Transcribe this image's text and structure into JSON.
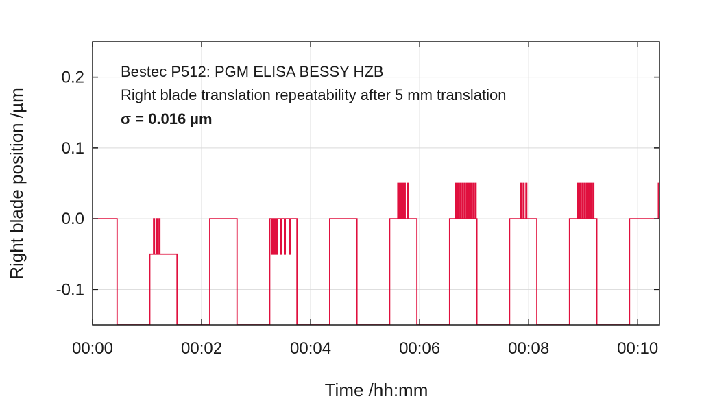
{
  "chart_data": {
    "type": "line",
    "annotations": [
      "Bestec P512: PGM ELISA BESSY HZB",
      "Right blade translation repeatability after 5 mm translation",
      "σ = 0.016 µm"
    ],
    "xlabel": "Time /hh:mm",
    "ylabel": "Right blade position /µm",
    "x_ticks": [
      "00:00",
      "00:02",
      "00:04",
      "00:06",
      "00:08",
      "00:10"
    ],
    "x_tick_minutes": [
      0,
      2,
      4,
      6,
      8,
      10
    ],
    "xlim_minutes": [
      0,
      10.4
    ],
    "y_ticks": [
      0.2,
      0.1,
      0.0,
      -0.1
    ],
    "y_tick_labels": [
      "0.2",
      "0.1",
      "0.0",
      "-0.1"
    ],
    "ylim": [
      -0.15,
      0.25
    ],
    "grid": true,
    "color": "#e0103e",
    "series": [
      {
        "plateaus": [
          {
            "start": 0.0,
            "end": 0.45,
            "base": 0.0,
            "spikes": []
          },
          {
            "start": 1.05,
            "end": 1.55,
            "base": -0.05,
            "spikes": [
              {
                "t": 1.12,
                "v": 0.0
              },
              {
                "t": 1.17,
                "v": 0.0
              },
              {
                "t": 1.22,
                "v": 0.0
              }
            ]
          },
          {
            "start": 2.15,
            "end": 2.65,
            "base": 0.0,
            "spikes": []
          },
          {
            "start": 3.25,
            "end": 3.75,
            "base": 0.0,
            "spikes": [
              {
                "t": 3.28,
                "v": -0.05
              },
              {
                "t": 3.31,
                "v": -0.05
              },
              {
                "t": 3.34,
                "v": -0.05
              },
              {
                "t": 3.37,
                "v": -0.05
              },
              {
                "t": 3.45,
                "v": -0.05
              },
              {
                "t": 3.52,
                "v": -0.05
              },
              {
                "t": 3.62,
                "v": -0.05
              }
            ]
          },
          {
            "start": 4.35,
            "end": 4.85,
            "base": 0.0,
            "spikes": []
          },
          {
            "start": 5.45,
            "end": 5.95,
            "base": 0.0,
            "spikes": [
              {
                "t": 5.6,
                "v": 0.05
              },
              {
                "t": 5.63,
                "v": 0.05
              },
              {
                "t": 5.66,
                "v": 0.05
              },
              {
                "t": 5.69,
                "v": 0.05
              },
              {
                "t": 5.72,
                "v": 0.05
              },
              {
                "t": 5.78,
                "v": 0.05
              }
            ]
          },
          {
            "start": 6.55,
            "end": 7.05,
            "base": 0.0,
            "spikes": [
              {
                "t": 6.66,
                "v": 0.05
              },
              {
                "t": 6.7,
                "v": 0.05
              },
              {
                "t": 6.74,
                "v": 0.05
              },
              {
                "t": 6.78,
                "v": 0.05
              },
              {
                "t": 6.82,
                "v": 0.05
              },
              {
                "t": 6.86,
                "v": 0.05
              },
              {
                "t": 6.9,
                "v": 0.05
              },
              {
                "t": 6.94,
                "v": 0.05
              },
              {
                "t": 6.98,
                "v": 0.05
              },
              {
                "t": 7.02,
                "v": 0.05
              }
            ]
          },
          {
            "start": 7.65,
            "end": 8.15,
            "base": 0.0,
            "spikes": [
              {
                "t": 7.85,
                "v": 0.05
              },
              {
                "t": 7.9,
                "v": 0.05
              },
              {
                "t": 7.95,
                "v": 0.05
              }
            ]
          },
          {
            "start": 8.75,
            "end": 9.25,
            "base": 0.0,
            "spikes": [
              {
                "t": 8.9,
                "v": 0.05
              },
              {
                "t": 8.94,
                "v": 0.05
              },
              {
                "t": 8.98,
                "v": 0.05
              },
              {
                "t": 9.02,
                "v": 0.05
              },
              {
                "t": 9.06,
                "v": 0.05
              },
              {
                "t": 9.1,
                "v": 0.05
              },
              {
                "t": 9.14,
                "v": 0.05
              },
              {
                "t": 9.18,
                "v": 0.05
              }
            ]
          },
          {
            "start": 9.85,
            "end": 10.4,
            "base": 0.0,
            "spikes": [
              {
                "t": 10.38,
                "v": 0.05
              }
            ]
          }
        ],
        "valley": -0.15
      }
    ]
  }
}
